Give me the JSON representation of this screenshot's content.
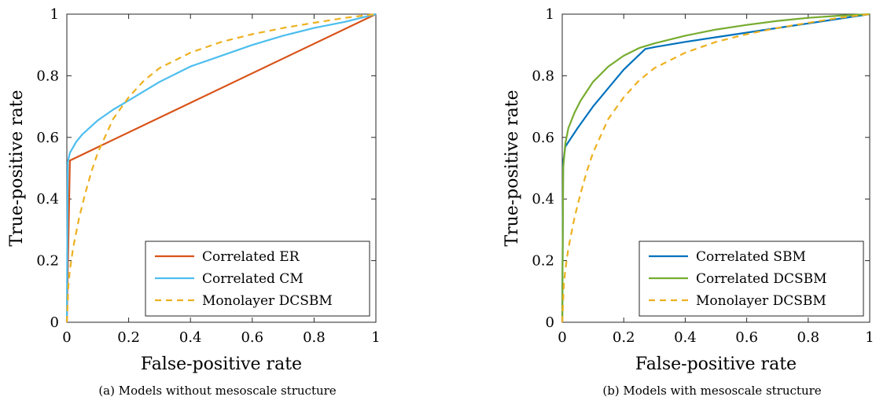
{
  "chart_data": [
    {
      "type": "line",
      "caption": "(a) Models without mesoscale structure",
      "xlabel": "False-positive rate",
      "ylabel": "True-positive rate",
      "xlim": [
        0,
        1
      ],
      "ylim": [
        0,
        1
      ],
      "xticks": [
        "0",
        "0.2",
        "0.4",
        "0.6",
        "0.8",
        "1"
      ],
      "yticks": [
        "0",
        "0.2",
        "0.4",
        "0.6",
        "0.8",
        "1"
      ],
      "grid": false,
      "legend_position": "bottom-right",
      "series": [
        {
          "name": "Correlated ER",
          "color": "#d95319",
          "style": "solid",
          "x": [
            0,
            0.01,
            1
          ],
          "y": [
            0,
            0.525,
            1
          ]
        },
        {
          "name": "Correlated CM",
          "color": "#4dbeee",
          "style": "solid",
          "x": [
            0,
            0.003,
            0.01,
            0.03,
            0.05,
            0.1,
            0.15,
            0.2,
            0.3,
            0.4,
            0.5,
            0.6,
            0.7,
            0.8,
            0.9,
            1.0
          ],
          "y": [
            0,
            0.52,
            0.55,
            0.585,
            0.61,
            0.655,
            0.69,
            0.72,
            0.78,
            0.83,
            0.865,
            0.9,
            0.93,
            0.955,
            0.975,
            1.0
          ]
        },
        {
          "name": "Monolayer DCSBM",
          "color": "#edb120",
          "style": "dashed",
          "x": [
            0,
            0.005,
            0.01,
            0.02,
            0.04,
            0.06,
            0.08,
            0.1,
            0.15,
            0.2,
            0.25,
            0.3,
            0.4,
            0.5,
            0.6,
            0.7,
            0.8,
            0.9,
            1.0
          ],
          "y": [
            0,
            0.12,
            0.17,
            0.24,
            0.34,
            0.42,
            0.49,
            0.55,
            0.66,
            0.73,
            0.785,
            0.825,
            0.875,
            0.91,
            0.935,
            0.955,
            0.972,
            0.988,
            1.0
          ]
        }
      ]
    },
    {
      "type": "line",
      "caption": "(b) Models with mesoscale structure",
      "xlabel": "False-positive rate",
      "ylabel": "True-positive rate",
      "xlim": [
        0,
        1
      ],
      "ylim": [
        0,
        1
      ],
      "xticks": [
        "0",
        "0.2",
        "0.4",
        "0.6",
        "0.8",
        "1"
      ],
      "yticks": [
        "0",
        "0.2",
        "0.4",
        "0.6",
        "0.8",
        "1"
      ],
      "grid": false,
      "legend_position": "bottom-right",
      "series": [
        {
          "name": "Correlated SBM",
          "color": "#0072bd",
          "style": "solid",
          "x": [
            0,
            0.003,
            0.01,
            0.05,
            0.1,
            0.15,
            0.2,
            0.27,
            0.3,
            0.4,
            0.5,
            0.6,
            0.7,
            0.8,
            0.9,
            1.0
          ],
          "y": [
            0,
            0.52,
            0.57,
            0.63,
            0.7,
            0.76,
            0.82,
            0.887,
            0.893,
            0.91,
            0.925,
            0.94,
            0.955,
            0.97,
            0.985,
            1.0
          ]
        },
        {
          "name": "Correlated DCSBM",
          "color": "#77ac30",
          "style": "solid",
          "x": [
            0,
            0.003,
            0.01,
            0.02,
            0.04,
            0.06,
            0.08,
            0.1,
            0.15,
            0.2,
            0.25,
            0.3,
            0.4,
            0.5,
            0.6,
            0.7,
            0.8,
            0.9,
            1.0
          ],
          "y": [
            0,
            0.5,
            0.58,
            0.63,
            0.68,
            0.72,
            0.75,
            0.78,
            0.83,
            0.865,
            0.89,
            0.905,
            0.93,
            0.95,
            0.965,
            0.978,
            0.988,
            0.995,
            1.0
          ]
        },
        {
          "name": "Monolayer DCSBM",
          "color": "#edb120",
          "style": "dashed",
          "x": [
            0,
            0.005,
            0.01,
            0.02,
            0.04,
            0.06,
            0.08,
            0.1,
            0.15,
            0.2,
            0.25,
            0.3,
            0.4,
            0.5,
            0.6,
            0.7,
            0.8,
            0.9,
            1.0
          ],
          "y": [
            0,
            0.12,
            0.17,
            0.24,
            0.34,
            0.42,
            0.49,
            0.55,
            0.66,
            0.73,
            0.785,
            0.825,
            0.875,
            0.91,
            0.935,
            0.955,
            0.972,
            0.988,
            1.0
          ]
        }
      ]
    }
  ]
}
